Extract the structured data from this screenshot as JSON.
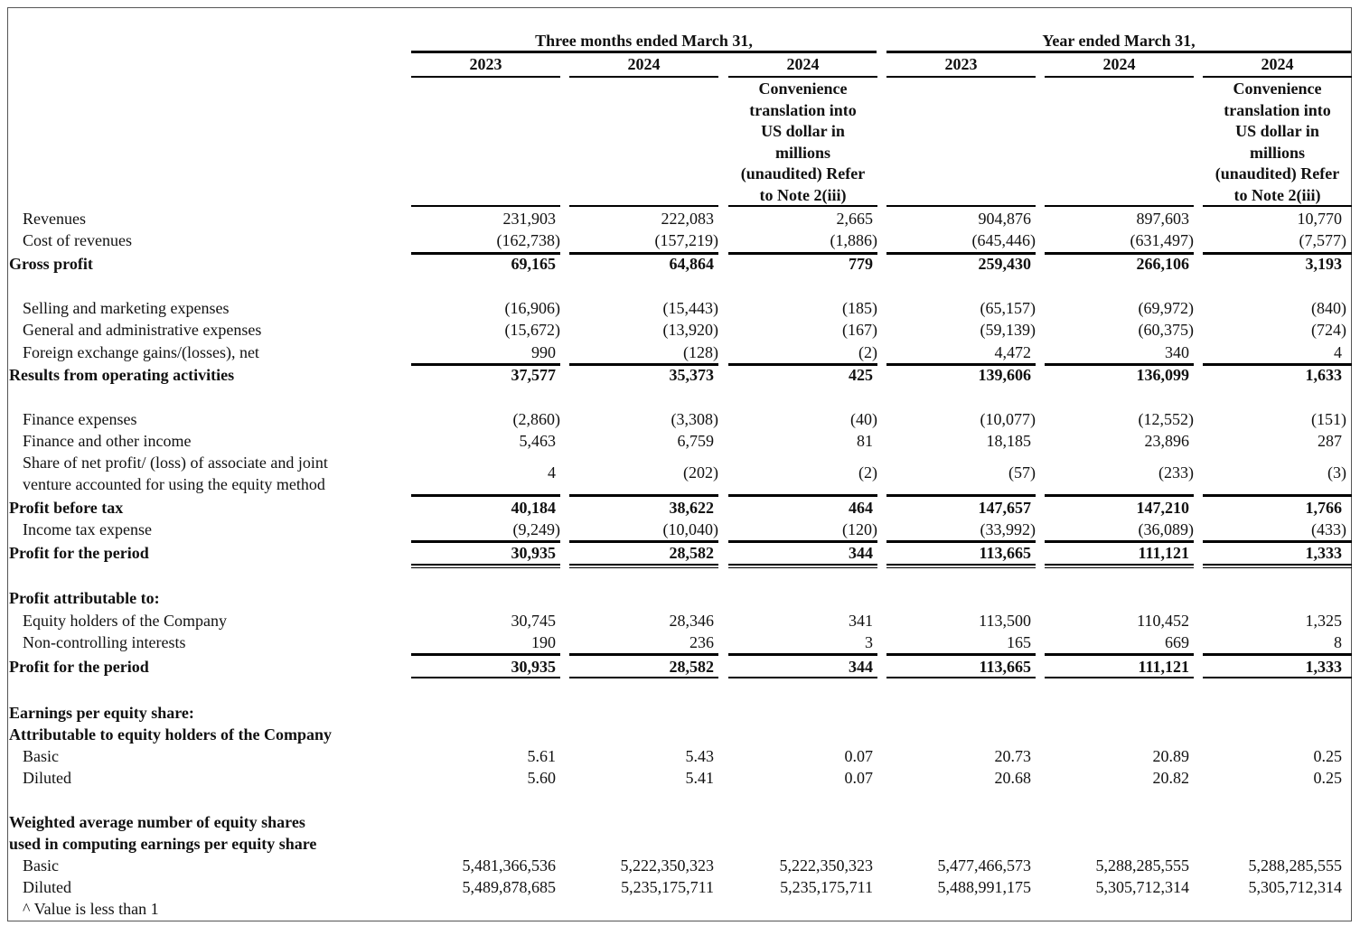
{
  "header": {
    "period_groups": [
      "Three months ended March 31,",
      "Year ended March 31,"
    ],
    "columns": [
      {
        "year": "2023",
        "note": ""
      },
      {
        "year": "2024",
        "note": ""
      },
      {
        "year": "2024",
        "note": "Convenience\ntranslation into\nUS dollar in\nmillions\n(unaudited) Refer\nto Note 2(iii)"
      },
      {
        "year": "2023",
        "note": ""
      },
      {
        "year": "2024",
        "note": ""
      },
      {
        "year": "2024",
        "note": "Convenience\ntranslation into\nUS dollar in\nmillions\n(unaudited) Refer\nto Note 2(iii)"
      }
    ]
  },
  "rows": [
    {
      "label": "Revenues",
      "bold": false,
      "indent": true,
      "values": [
        "231,903",
        "222,083",
        "2,665",
        "904,876",
        "897,603",
        "10,770"
      ]
    },
    {
      "label": "Cost of revenues",
      "bold": false,
      "indent": true,
      "values": [
        "(162,738)",
        "(157,219)",
        "(1,886)",
        "(645,446)",
        "(631,497)",
        "(7,577)"
      ]
    },
    {
      "label": "Gross profit",
      "bold": true,
      "indent": false,
      "values": [
        "69,165",
        "64,864",
        "779",
        "259,430",
        "266,106",
        "3,193"
      ]
    },
    {
      "label": "Selling and marketing expenses",
      "bold": false,
      "indent": true,
      "values": [
        "(16,906)",
        "(15,443)",
        "(185)",
        "(65,157)",
        "(69,972)",
        "(840)"
      ]
    },
    {
      "label": "General and administrative expenses",
      "bold": false,
      "indent": true,
      "values": [
        "(15,672)",
        "(13,920)",
        "(167)",
        "(59,139)",
        "(60,375)",
        "(724)"
      ]
    },
    {
      "label": "Foreign exchange gains/(losses), net",
      "bold": false,
      "indent": true,
      "values": [
        "990",
        "(128)",
        "(2)",
        "4,472",
        "340",
        "4"
      ]
    },
    {
      "label": "Results from operating activities",
      "bold": true,
      "indent": false,
      "values": [
        "37,577",
        "35,373",
        "425",
        "139,606",
        "136,099",
        "1,633"
      ]
    },
    {
      "label": "Finance expenses",
      "bold": false,
      "indent": true,
      "values": [
        "(2,860)",
        "(3,308)",
        "(40)",
        "(10,077)",
        "(12,552)",
        "(151)"
      ]
    },
    {
      "label": "Finance and other income",
      "bold": false,
      "indent": true,
      "values": [
        "5,463",
        "6,759",
        "81",
        "18,185",
        "23,896",
        "287"
      ]
    },
    {
      "label": "Share of net profit/ (loss) of associate and joint\nventure accounted for using the equity method",
      "bold": false,
      "indent": true,
      "values": [
        "4",
        "(202)",
        "(2)",
        "(57)",
        "(233)",
        "(3)"
      ]
    },
    {
      "label": "Profit before tax",
      "bold": true,
      "indent": false,
      "values": [
        "40,184",
        "38,622",
        "464",
        "147,657",
        "147,210",
        "1,766"
      ]
    },
    {
      "label": "Income tax expense",
      "bold": false,
      "indent": true,
      "values": [
        "(9,249)",
        "(10,040)",
        "(120)",
        "(33,992)",
        "(36,089)",
        "(433)"
      ]
    },
    {
      "label": "Profit for the period",
      "bold": true,
      "indent": false,
      "values": [
        "30,935",
        "28,582",
        "344",
        "113,665",
        "111,121",
        "1,333"
      ]
    },
    {
      "label": "Profit attributable to:",
      "bold": true,
      "indent": false,
      "values": []
    },
    {
      "label": "Equity holders of the Company",
      "bold": false,
      "indent": true,
      "values": [
        "30,745",
        "28,346",
        "341",
        "113,500",
        "110,452",
        "1,325"
      ]
    },
    {
      "label": "Non-controlling interests",
      "bold": false,
      "indent": true,
      "values": [
        "190",
        "236",
        "3",
        "165",
        "669",
        "8"
      ]
    },
    {
      "label": "Profit for the period",
      "bold": true,
      "indent": false,
      "values": [
        "30,935",
        "28,582",
        "344",
        "113,665",
        "111,121",
        "1,333"
      ]
    },
    {
      "label": "Earnings per equity share:",
      "bold": true,
      "indent": false,
      "values": []
    },
    {
      "label": "Attributable to equity holders of the Company",
      "bold": true,
      "indent": false,
      "values": []
    },
    {
      "label": "Basic",
      "bold": false,
      "indent": true,
      "values": [
        "5.61",
        "5.43",
        "0.07",
        "20.73",
        "20.89",
        "0.25"
      ]
    },
    {
      "label": "Diluted",
      "bold": false,
      "indent": true,
      "values": [
        "5.60",
        "5.41",
        "0.07",
        "20.68",
        "20.82",
        "0.25"
      ]
    },
    {
      "label": "Weighted average number of equity shares",
      "bold": true,
      "indent": false,
      "values": []
    },
    {
      "label": "used in computing earnings per equity share",
      "bold": true,
      "indent": false,
      "values": []
    },
    {
      "label": "Basic",
      "bold": false,
      "indent": true,
      "values": [
        "5,481,366,536",
        "5,222,350,323",
        "5,222,350,323",
        "5,477,466,573",
        "5,288,285,555",
        "5,288,285,555"
      ]
    },
    {
      "label": "Diluted",
      "bold": false,
      "indent": true,
      "values": [
        "5,489,878,685",
        "5,235,175,711",
        "5,235,175,711",
        "5,488,991,175",
        "5,305,712,314",
        "5,305,712,314"
      ]
    },
    {
      "label": "^ Value is less than 1",
      "bold": false,
      "indent": true,
      "values": []
    }
  ]
}
